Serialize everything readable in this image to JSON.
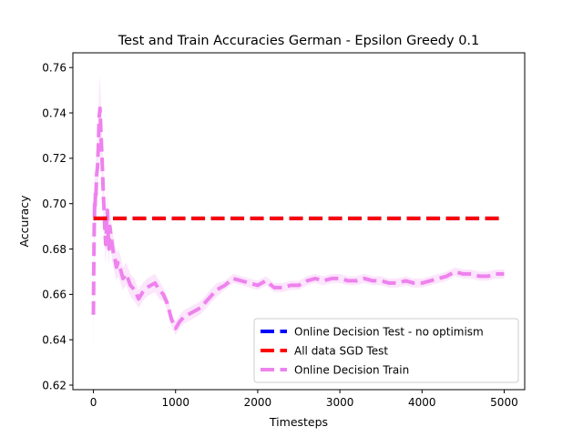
{
  "chart_data": {
    "type": "line",
    "title": "Test and Train Accuracies German - Epsilon Greedy 0.1",
    "xlabel": "Timesteps",
    "ylabel": "Accuracy",
    "xlim": [
      -250,
      5250
    ],
    "ylim": [
      0.618,
      0.7665
    ],
    "xticks": [
      0,
      1000,
      2000,
      3000,
      4000,
      5000
    ],
    "yticks": [
      0.62,
      0.64,
      0.66,
      0.68,
      0.7,
      0.72,
      0.74,
      0.76
    ],
    "legend_position": "lower-right",
    "grid": false,
    "series": [
      {
        "name": "Online Decision Test - no optimism",
        "color": "#0000ff",
        "linestyle": "dashed",
        "x": [
          0,
          5000
        ],
        "y": [
          0.6935,
          0.6935
        ]
      },
      {
        "name": "All data SGD Test",
        "color": "#ff0000",
        "linestyle": "dashed",
        "x": [
          0,
          5000
        ],
        "y": [
          0.6935,
          0.6935
        ]
      },
      {
        "name": "Online Decision Train",
        "color": "#ee82ee",
        "linestyle": "dashed",
        "x": [
          0,
          5,
          10,
          15,
          20,
          25,
          30,
          40,
          50,
          60,
          70,
          80,
          90,
          100,
          110,
          120,
          130,
          140,
          150,
          160,
          170,
          180,
          190,
          200,
          220,
          240,
          260,
          280,
          300,
          330,
          360,
          400,
          450,
          500,
          550,
          600,
          650,
          700,
          750,
          800,
          850,
          900,
          950,
          1000,
          1050,
          1100,
          1150,
          1200,
          1300,
          1400,
          1500,
          1600,
          1700,
          1800,
          1900,
          2000,
          2100,
          2200,
          2300,
          2400,
          2500,
          2600,
          2700,
          2800,
          2900,
          3000,
          3100,
          3200,
          3300,
          3400,
          3500,
          3600,
          3700,
          3800,
          3900,
          4000,
          4100,
          4200,
          4300,
          4400,
          4500,
          4600,
          4700,
          4800,
          4900,
          5000
        ],
        "y": [
          0.651,
          0.675,
          0.69,
          0.7,
          0.698,
          0.705,
          0.703,
          0.713,
          0.716,
          0.725,
          0.738,
          0.742,
          0.733,
          0.724,
          0.715,
          0.705,
          0.697,
          0.688,
          0.682,
          0.69,
          0.697,
          0.686,
          0.68,
          0.69,
          0.684,
          0.679,
          0.676,
          0.672,
          0.674,
          0.671,
          0.667,
          0.669,
          0.664,
          0.662,
          0.658,
          0.661,
          0.663,
          0.664,
          0.665,
          0.662,
          0.66,
          0.656,
          0.649,
          0.645,
          0.648,
          0.65,
          0.651,
          0.652,
          0.654,
          0.658,
          0.662,
          0.664,
          0.667,
          0.666,
          0.665,
          0.664,
          0.666,
          0.663,
          0.663,
          0.664,
          0.664,
          0.666,
          0.667,
          0.666,
          0.667,
          0.667,
          0.666,
          0.666,
          0.667,
          0.666,
          0.666,
          0.665,
          0.665,
          0.666,
          0.665,
          0.665,
          0.666,
          0.667,
          0.668,
          0.67,
          0.669,
          0.669,
          0.668,
          0.668,
          0.669,
          0.669
        ],
        "band": [
          0.02,
          0.018,
          0.016,
          0.015,
          0.014,
          0.013,
          0.013,
          0.013,
          0.013,
          0.014,
          0.014,
          0.014,
          0.013,
          0.012,
          0.011,
          0.011,
          0.01,
          0.01,
          0.009,
          0.009,
          0.009,
          0.008,
          0.008,
          0.008,
          0.007,
          0.007,
          0.007,
          0.006,
          0.006,
          0.006,
          0.005,
          0.005,
          0.005,
          0.005,
          0.004,
          0.004,
          0.004,
          0.004,
          0.004,
          0.004,
          0.003,
          0.003,
          0.003,
          0.003,
          0.003,
          0.003,
          0.003,
          0.003,
          0.003,
          0.003,
          0.003,
          0.002,
          0.002,
          0.002,
          0.002,
          0.002,
          0.002,
          0.002,
          0.002,
          0.002,
          0.002,
          0.002,
          0.002,
          0.002,
          0.002,
          0.002,
          0.002,
          0.002,
          0.002,
          0.002,
          0.002,
          0.002,
          0.002,
          0.002,
          0.002,
          0.002,
          0.002,
          0.002,
          0.002,
          0.002,
          0.002,
          0.002,
          0.002,
          0.002,
          0.002,
          0.002
        ]
      }
    ]
  }
}
